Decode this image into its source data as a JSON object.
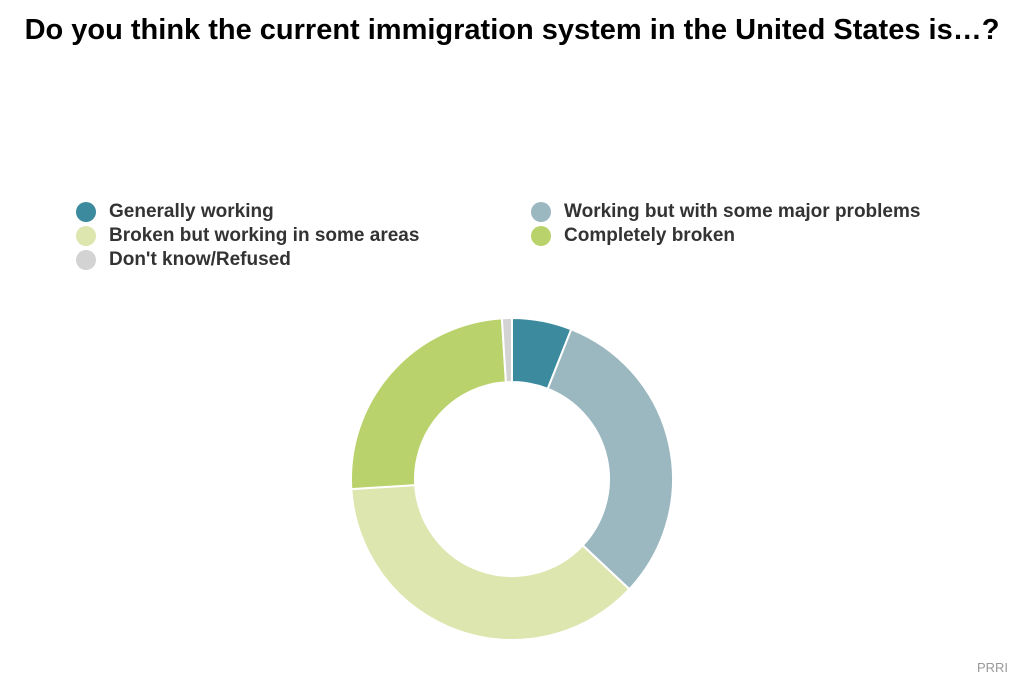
{
  "chart_data": {
    "type": "pie",
    "donut": true,
    "title": "Do you think the current immigration system in the United States is…?",
    "categories": [
      "Generally working",
      "Working but with some major problems",
      "Broken but working in some areas",
      "Completely broken",
      "Don't know/Refused"
    ],
    "values": [
      6,
      31,
      37,
      25,
      1
    ],
    "colors": [
      "#3B8A9E",
      "#9BB8C0",
      "#DCE6AE",
      "#BAD26C",
      "#D3D3D3"
    ],
    "legend_position": "top"
  },
  "credit": "PRRI"
}
